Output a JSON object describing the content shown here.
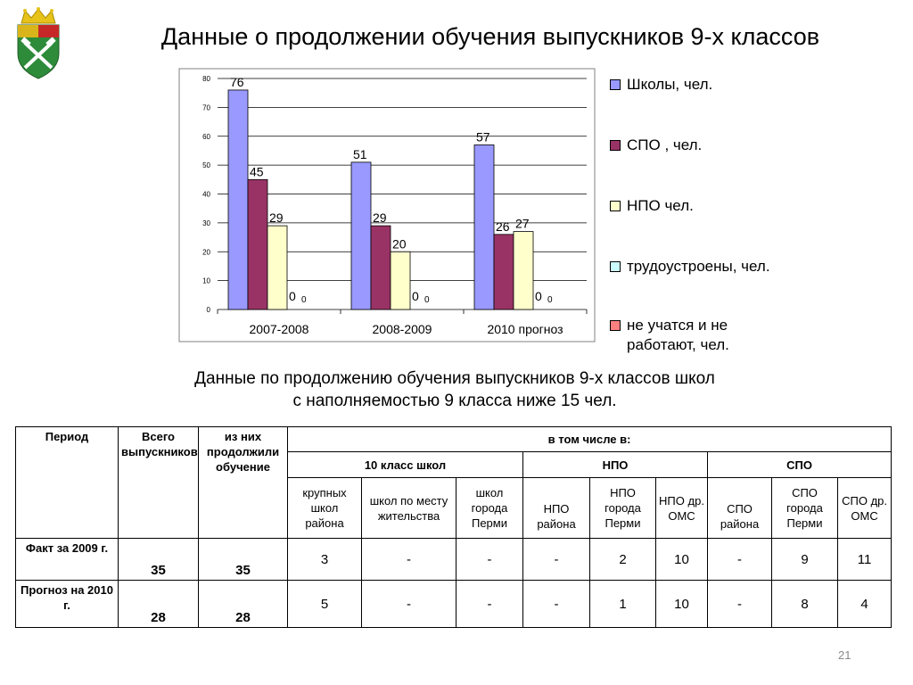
{
  "title": "Данные о продолжении обучения выпускников 9-х классов",
  "chart_data": {
    "type": "bar",
    "categories": [
      "2007-2008",
      "2008-2009",
      "2010 прогноз"
    ],
    "ylim": [
      0,
      80
    ],
    "yticks": [
      "0",
      "10",
      "20",
      "30",
      "40",
      "50",
      "60",
      "70",
      "80"
    ],
    "grid": true,
    "legend_position": "right",
    "series": [
      {
        "name": "Школы, чел.",
        "values": [
          76,
          51,
          57
        ],
        "color": "#9999ff"
      },
      {
        "name": "СПО , чел.",
        "values": [
          45,
          29,
          26
        ],
        "color": "#993366"
      },
      {
        "name": "НПО чел.",
        "values": [
          29,
          20,
          27
        ],
        "color": "#ffffcc"
      },
      {
        "name": "трудоустроены, чел.",
        "values": [
          0,
          0,
          0
        ],
        "color": "#ccffff"
      },
      {
        "name": "не учатся и не работают, чел.",
        "values": [
          0,
          0,
          0
        ],
        "color": "#ff8080"
      }
    ],
    "data_labels": [
      [
        "76",
        "51",
        "57"
      ],
      [
        "45",
        "29",
        "26"
      ],
      [
        "29",
        "20",
        "27"
      ],
      [
        "0",
        "0",
        "0"
      ],
      [
        "0",
        "0",
        "0"
      ]
    ]
  },
  "subtitle_line1": "Данные по продолжению обучения выпускников 9-х классов школ",
  "subtitle_line2": "с наполняемостью 9 класса ниже 15 чел.",
  "table": {
    "h_period": "Период",
    "h_total": "Всего выпускников",
    "h_continue": "из них продолжили обучение",
    "h_including": "в том числе в:",
    "g_school": "10 класс школ",
    "g_npo": "НПО",
    "g_spo": "СПО",
    "sub": [
      "крупных школ района",
      "школ по месту жительства",
      "школ города Перми",
      "НПО района",
      "НПО города Перми",
      "НПО др. ОМС",
      "СПО района",
      "СПО города Перми",
      "СПО др. ОМС"
    ],
    "rows": [
      {
        "period": "Факт за 2009 г.",
        "total": "35",
        "continue": "35",
        "values": [
          "3",
          "-",
          "-",
          "-",
          "2",
          "10",
          "-",
          "9",
          "11"
        ]
      },
      {
        "period": "Прогноз на 2010 г.",
        "total": "28",
        "continue": "28",
        "values": [
          "5",
          "-",
          "-",
          "-",
          "1",
          "10",
          "-",
          "8",
          "4"
        ]
      }
    ]
  },
  "page_number": "21"
}
